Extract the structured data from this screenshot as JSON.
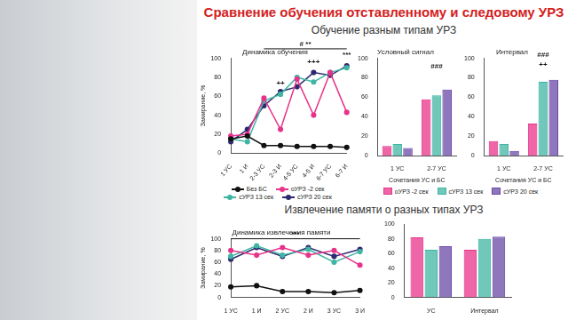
{
  "slide": {
    "title": "Сравнение обучения отставленному и следовому УРЗ",
    "sections": [
      "Обучение разным типам УРЗ",
      "Извлечение памяти о разных типах УРЗ"
    ]
  },
  "chart_data": [
    {
      "type": "line",
      "title": "Динамика обучения",
      "y_label": "Замирание, %",
      "categories": [
        "1 УС",
        "1 И",
        "2-3 УС",
        "2-3 И",
        "4-5 УС",
        "4-5 И",
        "6-7 УС",
        "6-7 И"
      ],
      "series": [
        {
          "name": "Без БС",
          "color": "#111111",
          "values": [
            15,
            18,
            8,
            8,
            7,
            7,
            7,
            6
          ]
        },
        {
          "name": "оУРЗ -2 сек",
          "color": "#e8338a",
          "values": [
            18,
            20,
            58,
            25,
            78,
            40,
            85,
            43
          ]
        },
        {
          "name": "сУРЗ 13 сек",
          "color": "#3fb5a3",
          "values": [
            15,
            12,
            55,
            62,
            80,
            75,
            85,
            90
          ]
        },
        {
          "name": "сУРЗ 20 сек",
          "color": "#2e2a70",
          "values": [
            12,
            25,
            50,
            65,
            70,
            85,
            82,
            92
          ]
        }
      ],
      "annotations": [
        {
          "text": "# **",
          "y": 110,
          "span": [
            "2-3 УС",
            "6-7 И"
          ]
        },
        {
          "text": "++",
          "category": "2-3 И",
          "y": 70
        },
        {
          "text": "+++",
          "category": "4-5 И",
          "y": 92
        },
        {
          "text": "***",
          "category": "6-7 И",
          "y": 100
        }
      ],
      "ylim": [
        0,
        100
      ],
      "yticks": [
        0,
        20,
        40,
        60,
        80,
        100
      ],
      "grid": false,
      "legend": "bottom",
      "marker": "circle"
    },
    {
      "type": "bar",
      "title": "Условный сигнал",
      "x_label": "Сочетания УС и БС",
      "categories": [
        "1 УС",
        "2-7 УС"
      ],
      "series": [
        {
          "name": "оУРЗ -2 сек",
          "color": "#e8338a",
          "values": [
            10,
            58
          ]
        },
        {
          "name": "сУРЗ 13 сек",
          "color": "#3fb5a3",
          "values": [
            12,
            62
          ]
        },
        {
          "name": "сУРЗ 20 сек",
          "color": "#6a4aa8",
          "values": [
            8,
            68
          ]
        }
      ],
      "annotations": [
        {
          "text": "###",
          "category": "2-7 УС",
          "y": 88
        }
      ],
      "ylim": [
        0,
        100
      ],
      "yticks": [
        0,
        20,
        40,
        60,
        80,
        100
      ],
      "grid": false,
      "legend": "bottom"
    },
    {
      "type": "bar",
      "title": "Интервал",
      "x_label": "Сочетания УС и БС",
      "categories": [
        "1 УС",
        "2-7 УС"
      ],
      "series": [
        {
          "color": "#e8338a",
          "values": [
            15,
            33
          ]
        },
        {
          "color": "#3fb5a3",
          "values": [
            12,
            76
          ]
        },
        {
          "color": "#6a4aa8",
          "values": [
            5,
            78
          ]
        }
      ],
      "annotations": [
        {
          "text": "###",
          "category": "2-7 УС",
          "y": 100
        },
        {
          "text": "++",
          "category": "2-7 УС",
          "y": 90
        }
      ],
      "ylim": [
        0,
        100
      ],
      "yticks": [
        0,
        20,
        40,
        60,
        80,
        100
      ],
      "grid": false
    },
    {
      "type": "line",
      "title": "Динамика извлечения памяти",
      "y_label": "Замирание, %",
      "categories": [
        "1 УС",
        "1 И",
        "2 УС",
        "2 И",
        "3 УС",
        "3 И"
      ],
      "series": [
        {
          "color": "#111111",
          "values": [
            18,
            20,
            10,
            10,
            8,
            12
          ]
        },
        {
          "color": "#e8338a",
          "values": [
            80,
            72,
            85,
            72,
            80,
            55
          ]
        },
        {
          "color": "#3fb5a3",
          "values": [
            70,
            88,
            72,
            82,
            60,
            78
          ]
        },
        {
          "color": "#2e2a70",
          "values": [
            65,
            85,
            70,
            85,
            70,
            82
          ]
        }
      ],
      "annotations": [
        {
          "text": "***",
          "y": 100,
          "span": [
            "1 УС",
            "3 И"
          ]
        }
      ],
      "ylim": [
        0,
        100
      ],
      "yticks": [
        0,
        20,
        40,
        60,
        80,
        100
      ],
      "grid": false,
      "marker": "circle"
    },
    {
      "type": "bar",
      "categories": [
        "УС",
        "Интервал"
      ],
      "series": [
        {
          "color": "#e8338a",
          "values": [
            82,
            65
          ]
        },
        {
          "color": "#3fb5a3",
          "values": [
            65,
            80
          ]
        },
        {
          "color": "#6a4aa8",
          "values": [
            70,
            83
          ]
        }
      ],
      "ylim": [
        0,
        100
      ],
      "yticks": [
        0,
        20,
        40,
        60,
        80,
        100
      ],
      "grid": false
    }
  ]
}
